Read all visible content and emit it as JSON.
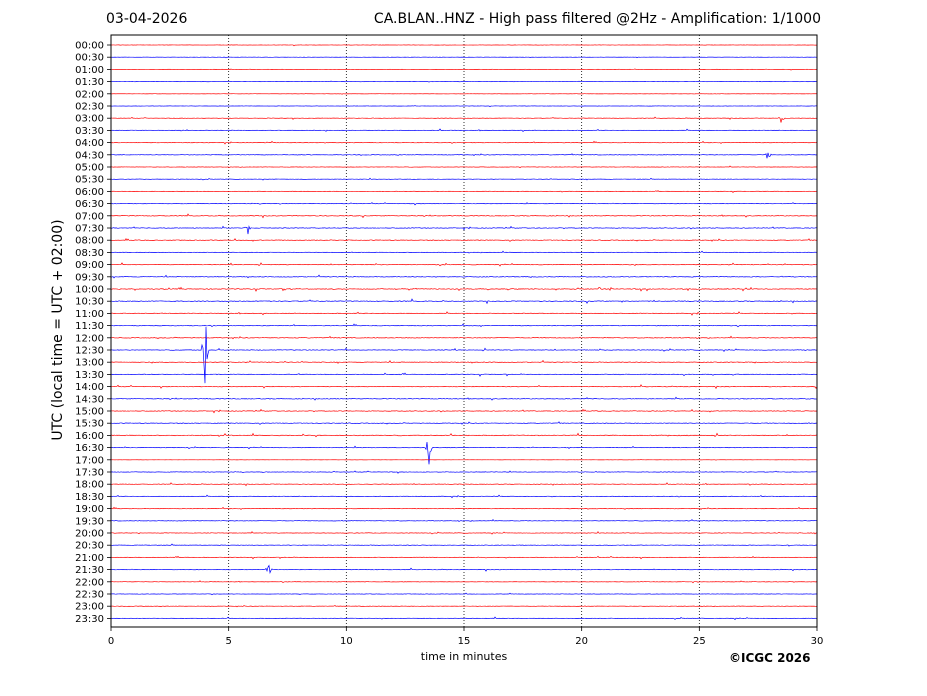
{
  "header": {
    "date": "03-04-2026",
    "title": "CA.BLAN..HNZ - High pass filtered @2Hz - Amplification: 1/1000"
  },
  "footer": {
    "copyright": "©ICGC 2026"
  },
  "chart_data": {
    "type": "line",
    "title": "CA.BLAN..HNZ - High pass filtered @2Hz - Amplification: 1/1000",
    "xlabel": "time in minutes",
    "ylabel": "UTC (local time = UTC + 02:00)",
    "xlim": [
      0,
      30
    ],
    "xticks": [
      0,
      5,
      10,
      15,
      20,
      25,
      30
    ],
    "grid": "vertical dotted at 5-minute intervals",
    "colors": {
      "red": "#ff0000",
      "blue": "#0000ff"
    },
    "rows": [
      "00:00",
      "00:30",
      "01:00",
      "01:30",
      "02:00",
      "02:30",
      "03:00",
      "03:30",
      "04:00",
      "04:30",
      "05:00",
      "05:30",
      "06:00",
      "06:30",
      "07:00",
      "07:30",
      "08:00",
      "08:30",
      "09:00",
      "09:30",
      "10:00",
      "10:30",
      "11:00",
      "11:30",
      "12:00",
      "12:30",
      "13:00",
      "13:30",
      "14:00",
      "14:30",
      "15:00",
      "15:30",
      "16:00",
      "16:30",
      "17:00",
      "17:30",
      "18:00",
      "18:30",
      "19:00",
      "19:30",
      "20:00",
      "20:30",
      "21:00",
      "21:30",
      "22:00",
      "22:30",
      "23:00",
      "23:30"
    ],
    "row_colors": "alternating red (even rows) / blue (odd rows)",
    "noise_level": [
      0.2,
      0.2,
      0.2,
      0.2,
      0.2,
      0.2,
      0.3,
      0.4,
      0.4,
      0.4,
      0.3,
      0.3,
      0.3,
      0.4,
      0.5,
      0.5,
      0.5,
      0.4,
      0.5,
      0.5,
      0.6,
      0.6,
      0.5,
      0.5,
      0.5,
      0.5,
      0.5,
      0.5,
      0.5,
      0.5,
      0.5,
      0.5,
      0.6,
      0.4,
      0.1,
      0.4,
      0.4,
      0.4,
      0.4,
      0.4,
      0.4,
      0.4,
      0.4,
      0.4,
      0.3,
      0.3,
      0.3,
      0.4
    ],
    "notable_events": [
      {
        "row": "12:30",
        "minute": 4.0,
        "amplitude": 6.0
      },
      {
        "row": "16:30",
        "minute": 13.5,
        "amplitude": 2.5
      },
      {
        "row": "07:30",
        "minute": 5.8,
        "amplitude": 1.2
      },
      {
        "row": "21:30",
        "minute": 6.7,
        "amplitude": 1.2
      },
      {
        "row": "04:30",
        "minute": 27.9,
        "amplitude": 1.0
      },
      {
        "row": "03:00",
        "minute": 28.5,
        "amplitude": 0.8
      }
    ]
  }
}
